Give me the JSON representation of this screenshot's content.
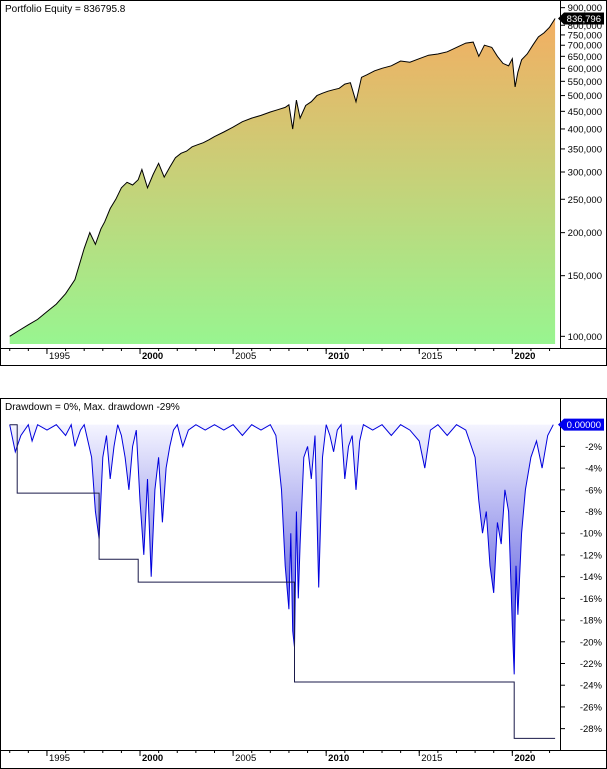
{
  "colors": {
    "axis": "#000000",
    "equity_line": "#000000",
    "equity_fill_top": "#f3ae62",
    "equity_fill_bottom": "#98f590",
    "drawdown_line": "#0000dd",
    "drawdown_fill_top": "#f4f4ff",
    "drawdown_fill_bottom": "#3a3ad8",
    "max_dd_line": "#1a1a4a",
    "value_box_equity": "#000000",
    "value_box_drawdown": "#0000ee"
  },
  "chart_data": [
    {
      "type": "area",
      "title": "Portfolio Equity = 836795.8",
      "scale": "log",
      "ylim": [
        95000,
        910000
      ],
      "xlim": [
        1992.8,
        2022.4
      ],
      "x_ticks": [
        {
          "label": "1995",
          "x": 1995.0,
          "bold": false
        },
        {
          "label": "2000",
          "x": 2000.0,
          "bold": true
        },
        {
          "label": "2005",
          "x": 2005.0,
          "bold": false
        },
        {
          "label": "2010",
          "x": 2010.0,
          "bold": true
        },
        {
          "label": "2015",
          "x": 2015.0,
          "bold": false
        },
        {
          "label": "2020",
          "x": 2020.0,
          "bold": true
        }
      ],
      "y_ticks": [
        {
          "label": "900,000",
          "value": 900000
        },
        {
          "label": "800,000",
          "value": 800000
        },
        {
          "label": "750,000",
          "value": 750000
        },
        {
          "label": "700,000",
          "value": 700000
        },
        {
          "label": "650,000",
          "value": 650000
        },
        {
          "label": "600,000",
          "value": 600000
        },
        {
          "label": "550,000",
          "value": 550000
        },
        {
          "label": "500,000",
          "value": 500000
        },
        {
          "label": "450,000",
          "value": 450000
        },
        {
          "label": "400,000",
          "value": 400000
        },
        {
          "label": "350,000",
          "value": 350000
        },
        {
          "label": "300,000",
          "value": 300000
        },
        {
          "label": "250,000",
          "value": 250000
        },
        {
          "label": "200,000",
          "value": 200000
        },
        {
          "label": "150,000",
          "value": 150000
        },
        {
          "label": "100,000",
          "value": 100000
        }
      ],
      "last_value_label": "836,796",
      "last_value": 836796,
      "series": [
        {
          "x": [
            1993.0,
            1993.5,
            1994.0,
            1994.5,
            1995.0,
            1995.5,
            1996.0,
            1996.5,
            1997.0,
            1997.3,
            1997.6,
            1997.9,
            1998.1,
            1998.4,
            1998.7,
            1999.0,
            1999.3,
            1999.6,
            1999.9,
            2000.1,
            2000.4,
            2000.7,
            2001.0,
            2001.3,
            2001.6,
            2001.9,
            2002.2,
            2002.5,
            2002.8,
            2003.1,
            2003.4,
            2003.7,
            2004.0,
            2004.5,
            2005.0,
            2005.5,
            2006.0,
            2006.5,
            2007.0,
            2007.4,
            2007.8,
            2008.0,
            2008.2,
            2008.4,
            2008.6,
            2008.9,
            2009.2,
            2009.5,
            2009.8,
            2010.1,
            2010.4,
            2010.7,
            2011.0,
            2011.3,
            2011.6,
            2011.9,
            2012.2,
            2012.6,
            2013.0,
            2013.5,
            2014.0,
            2014.5,
            2015.0,
            2015.5,
            2016.0,
            2016.5,
            2017.0,
            2017.5,
            2017.9,
            2018.2,
            2018.5,
            2018.9,
            2019.2,
            2019.5,
            2019.8,
            2020.0,
            2020.15,
            2020.3,
            2020.5,
            2020.8,
            2021.1,
            2021.4,
            2021.7,
            2022.0,
            2022.3
          ],
          "y": [
            100000,
            104000,
            108000,
            112000,
            118000,
            124000,
            133000,
            146000,
            180000,
            200000,
            185000,
            205000,
            215000,
            235000,
            250000,
            270000,
            280000,
            275000,
            285000,
            305000,
            270000,
            295000,
            318000,
            290000,
            310000,
            330000,
            340000,
            345000,
            355000,
            360000,
            365000,
            372000,
            380000,
            392000,
            405000,
            420000,
            430000,
            438000,
            448000,
            455000,
            462000,
            470000,
            400000,
            485000,
            430000,
            468000,
            480000,
            500000,
            508000,
            515000,
            520000,
            525000,
            540000,
            545000,
            480000,
            565000,
            575000,
            590000,
            600000,
            610000,
            630000,
            625000,
            640000,
            655000,
            660000,
            670000,
            690000,
            710000,
            715000,
            650000,
            700000,
            690000,
            650000,
            620000,
            610000,
            640000,
            530000,
            585000,
            635000,
            660000,
            700000,
            740000,
            760000,
            790000,
            836796
          ]
        }
      ]
    },
    {
      "type": "area",
      "title": "Drawdown = 0%, Max. drawdown -29%",
      "ylim": [
        -29.6,
        0.8
      ],
      "xlim": [
        1992.8,
        2022.4
      ],
      "x_ticks": [
        {
          "label": "1995",
          "x": 1995.0,
          "bold": false
        },
        {
          "label": "2000",
          "x": 2000.0,
          "bold": true
        },
        {
          "label": "2005",
          "x": 2005.0,
          "bold": false
        },
        {
          "label": "2010",
          "x": 2010.0,
          "bold": true
        },
        {
          "label": "2015",
          "x": 2015.0,
          "bold": false
        },
        {
          "label": "2020",
          "x": 2020.0,
          "bold": true
        }
      ],
      "y_ticks": [
        {
          "label": "-2%",
          "value": -2
        },
        {
          "label": "-4%",
          "value": -4
        },
        {
          "label": "-6%",
          "value": -6
        },
        {
          "label": "-8%",
          "value": -8
        },
        {
          "label": "-10%",
          "value": -10
        },
        {
          "label": "-12%",
          "value": -12
        },
        {
          "label": "-14%",
          "value": -14
        },
        {
          "label": "-16%",
          "value": -16
        },
        {
          "label": "-18%",
          "value": -18
        },
        {
          "label": "-20%",
          "value": -20
        },
        {
          "label": "-22%",
          "value": -22
        },
        {
          "label": "-24%",
          "value": -24
        },
        {
          "label": "-26%",
          "value": -26
        },
        {
          "label": "-28%",
          "value": -28
        }
      ],
      "last_value_label": "0.00000",
      "last_value": 0,
      "series": [
        {
          "name": "Drawdown",
          "x": [
            1993.0,
            1993.3,
            1993.6,
            1994.0,
            1994.2,
            1994.5,
            1995.0,
            1995.5,
            1996.0,
            1996.3,
            1996.5,
            1996.8,
            1997.0,
            1997.2,
            1997.4,
            1997.6,
            1997.8,
            1998.0,
            1998.2,
            1998.4,
            1998.6,
            1998.8,
            1999.0,
            1999.2,
            1999.4,
            1999.6,
            1999.8,
            2000.0,
            2000.2,
            2000.4,
            2000.6,
            2000.8,
            2001.0,
            2001.2,
            2001.4,
            2001.6,
            2001.8,
            2002.0,
            2002.3,
            2002.6,
            2003.0,
            2003.5,
            2004.0,
            2004.5,
            2005.0,
            2005.5,
            2006.0,
            2006.5,
            2007.0,
            2007.3,
            2007.6,
            2007.8,
            2008.0,
            2008.1,
            2008.2,
            2008.3,
            2008.4,
            2008.5,
            2008.6,
            2008.8,
            2009.0,
            2009.2,
            2009.4,
            2009.6,
            2009.8,
            2010.0,
            2010.2,
            2010.4,
            2010.6,
            2010.8,
            2011.0,
            2011.2,
            2011.4,
            2011.6,
            2011.8,
            2012.0,
            2012.5,
            2013.0,
            2013.5,
            2014.0,
            2014.5,
            2015.0,
            2015.3,
            2015.6,
            2016.0,
            2016.5,
            2017.0,
            2017.5,
            2018.0,
            2018.2,
            2018.4,
            2018.6,
            2018.8,
            2019.0,
            2019.2,
            2019.4,
            2019.6,
            2019.8,
            2020.0,
            2020.1,
            2020.2,
            2020.3,
            2020.5,
            2020.7,
            2021.0,
            2021.3,
            2021.6,
            2021.9,
            2022.2
          ],
          "y": [
            0,
            -2.5,
            -1.0,
            0,
            -1.5,
            0,
            -0.5,
            0,
            -1.0,
            0,
            -2.0,
            -0.5,
            0,
            -1.5,
            -3.0,
            -8.0,
            -10.5,
            -3.0,
            -1.0,
            -5.0,
            -2.0,
            0,
            -1.0,
            -3.0,
            -6.0,
            -2.0,
            -0.5,
            -7.0,
            -12.0,
            -5.0,
            -14.0,
            -6.0,
            -3.0,
            -9.0,
            -4.0,
            -2.0,
            -0.5,
            0,
            -2.0,
            -0.5,
            0,
            -0.5,
            0,
            -0.5,
            0,
            -1.0,
            0,
            -0.5,
            0,
            -1.0,
            -6.0,
            -13.0,
            -17.0,
            -10.0,
            -19.0,
            -20.5,
            -8.0,
            -16.0,
            -11.0,
            -3.0,
            -2.0,
            -5.0,
            -1.0,
            -15.0,
            -3.0,
            0,
            -1.0,
            -2.5,
            -0.5,
            0,
            -5.0,
            -2.0,
            -1.0,
            -6.0,
            -1.5,
            0,
            -0.5,
            0,
            -1.0,
            0,
            -0.5,
            -1.5,
            -4.0,
            -0.5,
            0,
            -1.0,
            0,
            -0.5,
            -3.0,
            -7.0,
            -10.0,
            -8.0,
            -13.0,
            -15.5,
            -9.0,
            -11.0,
            -6.0,
            -8.0,
            -18.5,
            -23.0,
            -13.0,
            -17.5,
            -10.0,
            -6.0,
            -3.0,
            -1.5,
            -4.0,
            -1.0,
            0
          ]
        },
        {
          "name": "Max. drawdown",
          "x": [
            1993.0,
            1993.4,
            1993.4,
            1997.8,
            1997.8,
            1999.9,
            1999.9,
            2008.3,
            2008.3,
            2020.1,
            2020.1,
            2022.3
          ],
          "y": [
            0,
            0,
            -6.3,
            -6.3,
            -12.4,
            -12.4,
            -14.5,
            -14.5,
            -23.7,
            -23.7,
            -28.9,
            -28.9
          ]
        }
      ]
    }
  ]
}
